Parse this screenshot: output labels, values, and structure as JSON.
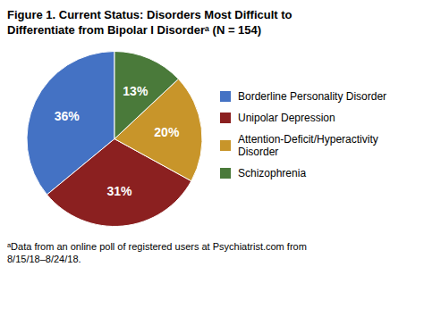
{
  "chart_data": {
    "type": "pie",
    "title": [
      "Figure 1. Current Status: Disorders Most Difficult to",
      "Differentiate from Bipolar I Disorderᵃ (N = 154)"
    ],
    "categories": [
      "Borderline Personality Disorder",
      "Unipolar Depression",
      "Attention-Deficit/Hyperactivity\nDisorder",
      "Schizophrenia"
    ],
    "values": [
      36,
      31,
      20,
      13
    ],
    "value_labels": [
      "36%",
      "31%",
      "20%",
      "13%"
    ],
    "data_labels": true,
    "colors": [
      "#4472C4",
      "#8B2020",
      "#C8952A",
      "#4A7A3A"
    ],
    "legend": "right",
    "annotations": [
      "ᵃData from an online poll of registered users at Psychiatrist.com from",
      "8/15/18–8/24/18."
    ]
  }
}
